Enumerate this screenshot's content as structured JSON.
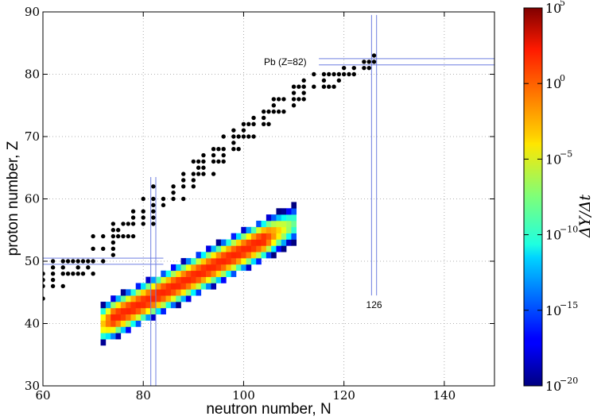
{
  "chart_data": {
    "type": "scatter",
    "xlabel": "neutron number, N",
    "ylabel": "proton number, Z",
    "xlim": [
      60,
      150
    ],
    "ylim": [
      30,
      90
    ],
    "xticks": [
      60,
      80,
      100,
      120,
      140
    ],
    "yticks": [
      30,
      40,
      50,
      60,
      70,
      80,
      90
    ],
    "grid": true,
    "annotations": [
      {
        "text": "Pb (Z=82)",
        "x": 114,
        "y": 82
      },
      {
        "text": "126",
        "x": 126,
        "y": 43
      }
    ],
    "magic_lines": {
      "vertical": [
        82,
        126
      ],
      "horizontal": [
        50,
        82
      ]
    },
    "colorbar": {
      "label": "ΔY/Δt",
      "scale": "log",
      "range_exp": [
        -20,
        5
      ],
      "tick_exponents": [
        5,
        0,
        -5,
        -10,
        -15,
        -20
      ],
      "tick_base": "10"
    },
    "stable_points": [
      [
        60,
        44
      ],
      [
        60,
        46
      ],
      [
        60,
        47
      ],
      [
        60,
        48
      ],
      [
        62,
        46
      ],
      [
        62,
        47
      ],
      [
        62,
        48
      ],
      [
        62,
        49
      ],
      [
        62,
        50
      ],
      [
        64,
        46
      ],
      [
        64,
        48
      ],
      [
        64,
        49
      ],
      [
        64,
        50
      ],
      [
        65,
        48
      ],
      [
        65,
        50
      ],
      [
        66,
        48
      ],
      [
        66,
        50
      ],
      [
        67,
        48
      ],
      [
        67,
        49
      ],
      [
        67,
        50
      ],
      [
        68,
        48
      ],
      [
        68,
        50
      ],
      [
        69,
        49
      ],
      [
        69,
        50
      ],
      [
        70,
        48
      ],
      [
        70,
        50
      ],
      [
        70,
        52
      ],
      [
        70,
        54
      ],
      [
        72,
        50
      ],
      [
        72,
        52
      ],
      [
        72,
        54
      ],
      [
        74,
        51
      ],
      [
        74,
        52
      ],
      [
        74,
        53
      ],
      [
        74,
        54
      ],
      [
        74,
        55
      ],
      [
        74,
        56
      ],
      [
        75,
        54
      ],
      [
        75,
        55
      ],
      [
        76,
        54
      ],
      [
        76,
        56
      ],
      [
        77,
        54
      ],
      [
        77,
        56
      ],
      [
        78,
        54
      ],
      [
        78,
        56
      ],
      [
        78,
        57
      ],
      [
        78,
        58
      ],
      [
        80,
        56
      ],
      [
        80,
        57
      ],
      [
        80,
        58
      ],
      [
        80,
        60
      ],
      [
        82,
        56
      ],
      [
        82,
        57
      ],
      [
        82,
        58
      ],
      [
        82,
        59
      ],
      [
        82,
        60
      ],
      [
        82,
        62
      ],
      [
        84,
        59
      ],
      [
        84,
        60
      ],
      [
        86,
        60
      ],
      [
        86,
        61
      ],
      [
        86,
        62
      ],
      [
        88,
        60
      ],
      [
        88,
        62
      ],
      [
        88,
        63
      ],
      [
        88,
        64
      ],
      [
        90,
        62
      ],
      [
        90,
        63
      ],
      [
        90,
        64
      ],
      [
        90,
        66
      ],
      [
        91,
        64
      ],
      [
        91,
        65
      ],
      [
        91,
        66
      ],
      [
        92,
        64
      ],
      [
        92,
        65
      ],
      [
        92,
        66
      ],
      [
        92,
        67
      ],
      [
        94,
        64
      ],
      [
        94,
        66
      ],
      [
        94,
        67
      ],
      [
        94,
        68
      ],
      [
        95,
        66
      ],
      [
        95,
        68
      ],
      [
        96,
        66
      ],
      [
        96,
        67
      ],
      [
        96,
        68
      ],
      [
        96,
        70
      ],
      [
        98,
        68
      ],
      [
        98,
        69
      ],
      [
        98,
        70
      ],
      [
        98,
        71
      ],
      [
        99,
        68
      ],
      [
        99,
        70
      ],
      [
        100,
        70
      ],
      [
        100,
        71
      ],
      [
        100,
        72
      ],
      [
        101,
        70
      ],
      [
        101,
        72
      ],
      [
        102,
        70
      ],
      [
        102,
        72
      ],
      [
        102,
        73
      ],
      [
        104,
        72
      ],
      [
        104,
        73
      ],
      [
        104,
        74
      ],
      [
        105,
        72
      ],
      [
        105,
        74
      ],
      [
        106,
        74
      ],
      [
        106,
        75
      ],
      [
        106,
        76
      ],
      [
        107,
        74
      ],
      [
        107,
        76
      ],
      [
        108,
        74
      ],
      [
        108,
        76
      ],
      [
        110,
        75
      ],
      [
        110,
        76
      ],
      [
        110,
        77
      ],
      [
        110,
        78
      ],
      [
        111,
        76
      ],
      [
        111,
        78
      ],
      [
        112,
        76
      ],
      [
        112,
        77
      ],
      [
        112,
        78
      ],
      [
        112,
        79
      ],
      [
        114,
        78
      ],
      [
        114,
        80
      ],
      [
        116,
        78
      ],
      [
        116,
        79
      ],
      [
        116,
        80
      ],
      [
        117,
        78
      ],
      [
        117,
        80
      ],
      [
        118,
        78
      ],
      [
        118,
        80
      ],
      [
        119,
        79
      ],
      [
        119,
        80
      ],
      [
        120,
        80
      ],
      [
        120,
        81
      ],
      [
        121,
        80
      ],
      [
        122,
        80
      ],
      [
        122,
        81
      ],
      [
        124,
        81
      ],
      [
        124,
        82
      ],
      [
        125,
        81
      ],
      [
        125,
        82
      ],
      [
        126,
        82
      ],
      [
        126,
        83
      ]
    ],
    "heatmap_band": {
      "cell_units": 1,
      "ridge": {
        "start": [
          72,
          40
        ],
        "end": [
          110,
          56
        ]
      },
      "half_width_z": 3.2,
      "log_peak": 1,
      "log_edge": -18
    }
  }
}
